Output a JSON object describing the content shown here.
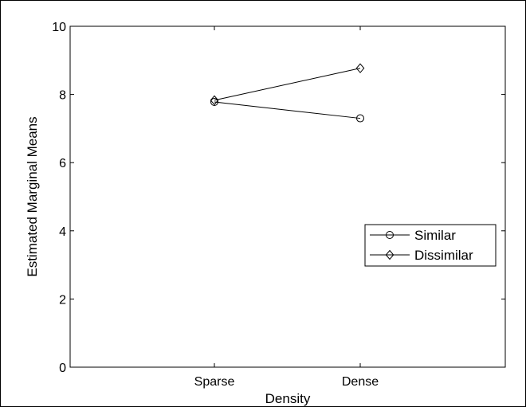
{
  "chart_data": {
    "type": "line",
    "categories": [
      "Sparse",
      "Dense"
    ],
    "series": [
      {
        "name": "Similar",
        "marker": "circle",
        "values": [
          7.78,
          7.3
        ]
      },
      {
        "name": "Dissimilar",
        "marker": "diamond",
        "values": [
          7.83,
          8.77
        ]
      }
    ],
    "xlabel": "Density",
    "ylabel": "Estimated Marginal Means",
    "ylim": [
      0,
      10
    ],
    "yticks": [
      0,
      2,
      4,
      6,
      8,
      10
    ],
    "grid": false,
    "legend_position": "right"
  }
}
